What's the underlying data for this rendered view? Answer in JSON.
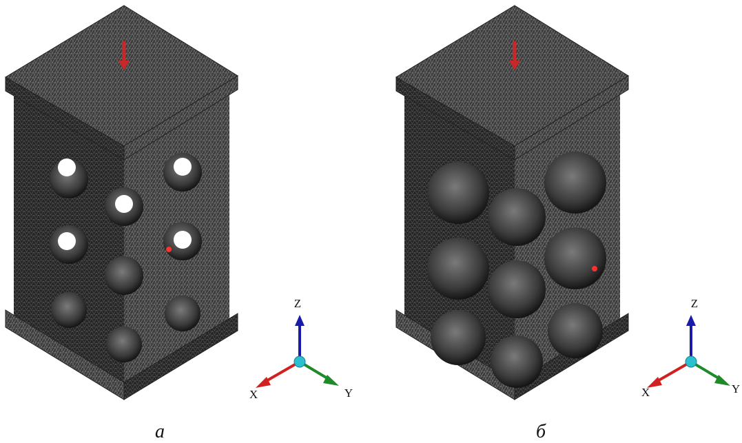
{
  "panels": [
    {
      "label": "а",
      "axes": {
        "x": "X",
        "y": "Y",
        "z": "Z"
      }
    },
    {
      "label": "б",
      "axes": {
        "x": "X",
        "y": "Y",
        "z": "Z"
      }
    }
  ]
}
